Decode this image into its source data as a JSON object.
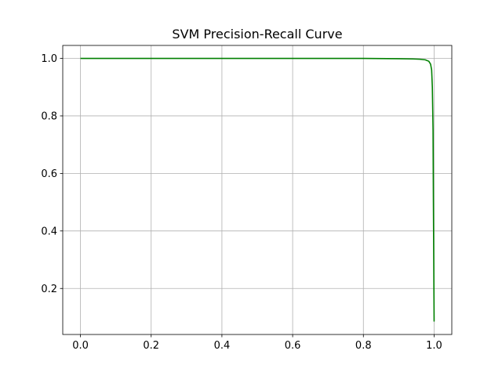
{
  "chart_data": {
    "type": "line",
    "title": "SVM Precision-Recall Curve",
    "xlabel": "",
    "ylabel": "",
    "xlim": [
      -0.05,
      1.05
    ],
    "ylim": [
      0.04,
      1.045
    ],
    "x_ticks": [
      0.0,
      0.2,
      0.4,
      0.6,
      0.8,
      1.0
    ],
    "x_tick_labels": [
      "0.0",
      "0.2",
      "0.4",
      "0.6",
      "0.8",
      "1.0"
    ],
    "y_ticks": [
      0.2,
      0.4,
      0.6,
      0.8,
      1.0
    ],
    "y_tick_labels": [
      "0.2",
      "0.4",
      "0.6",
      "0.8",
      "1.0"
    ],
    "grid": true,
    "series": [
      {
        "color": "#008000",
        "x": [
          0.0,
          0.2,
          0.4,
          0.6,
          0.8,
          0.9,
          0.94,
          0.96,
          0.975,
          0.985,
          0.99,
          0.993,
          0.995,
          0.997,
          0.998,
          0.999,
          1.0
        ],
        "y": [
          1.0,
          1.0,
          1.0,
          1.0,
          1.0,
          0.999,
          0.998,
          0.997,
          0.995,
          0.99,
          0.98,
          0.96,
          0.9,
          0.75,
          0.5,
          0.3,
          0.085
        ]
      }
    ]
  }
}
